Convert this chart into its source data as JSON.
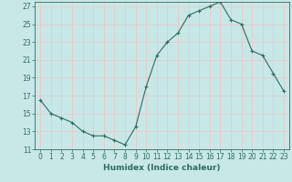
{
  "x": [
    0,
    1,
    2,
    3,
    4,
    5,
    6,
    7,
    8,
    9,
    10,
    11,
    12,
    13,
    14,
    15,
    16,
    17,
    18,
    19,
    20,
    21,
    22,
    23
  ],
  "y": [
    16.5,
    15.0,
    14.5,
    14.0,
    13.0,
    12.5,
    12.5,
    12.0,
    11.5,
    13.5,
    18.0,
    21.5,
    23.0,
    24.0,
    26.0,
    26.5,
    27.0,
    27.5,
    25.5,
    25.0,
    22.0,
    21.5,
    19.5,
    17.5
  ],
  "xlabel": "Humidex (Indice chaleur)",
  "ylim": [
    11,
    27.5
  ],
  "xlim": [
    -0.5,
    23.5
  ],
  "yticks": [
    11,
    13,
    15,
    17,
    19,
    21,
    23,
    25,
    27
  ],
  "xticks": [
    0,
    1,
    2,
    3,
    4,
    5,
    6,
    7,
    8,
    9,
    10,
    11,
    12,
    13,
    14,
    15,
    16,
    17,
    18,
    19,
    20,
    21,
    22,
    23
  ],
  "xtick_labels": [
    "0",
    "1",
    "2",
    "3",
    "4",
    "5",
    "6",
    "7",
    "8",
    "9",
    "10",
    "11",
    "12",
    "13",
    "14",
    "15",
    "16",
    "17",
    "18",
    "19",
    "20",
    "21",
    "22",
    "23"
  ],
  "line_color": "#2e6b5e",
  "marker": "+",
  "marker_size": 3.5,
  "background_color": "#c8e8e8",
  "grid_color": "#e8c8c8",
  "label_fontsize": 6.5,
  "tick_fontsize": 5.5
}
